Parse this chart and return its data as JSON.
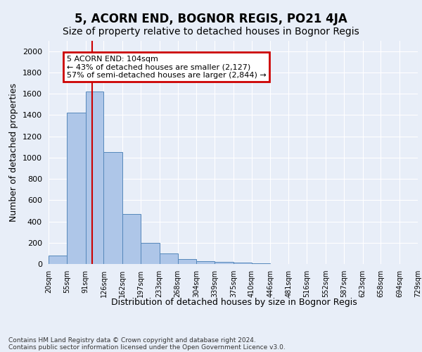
{
  "title": "5, ACORN END, BOGNOR REGIS, PO21 4JA",
  "subtitle": "Size of property relative to detached houses in Bognor Regis",
  "xlabel": "Distribution of detached houses by size in Bognor Regis",
  "ylabel": "Number of detached properties",
  "bin_edges": [
    20,
    55,
    91,
    126,
    162,
    197,
    233,
    268,
    304,
    339,
    375,
    410,
    446,
    481,
    516,
    552,
    587,
    623,
    658,
    694,
    729
  ],
  "bar_heights": [
    80,
    1420,
    1620,
    1050,
    470,
    200,
    100,
    45,
    25,
    20,
    10,
    5,
    2,
    1,
    0,
    0,
    0,
    0,
    0,
    0
  ],
  "bar_color": "#aec6e8",
  "bar_edgecolor": "#5588bb",
  "vline_x": 104,
  "vline_color": "#cc0000",
  "ylim": [
    0,
    2100
  ],
  "yticks": [
    0,
    200,
    400,
    600,
    800,
    1000,
    1200,
    1400,
    1600,
    1800,
    2000
  ],
  "annotation_line1": "5 ACORN END: 104sqm",
  "annotation_line2": "← 43% of detached houses are smaller (2,127)",
  "annotation_line3": "57% of semi-detached houses are larger (2,844) →",
  "annotation_box_color": "#cc0000",
  "footer_line1": "Contains HM Land Registry data © Crown copyright and database right 2024.",
  "footer_line2": "Contains public sector information licensed under the Open Government Licence v3.0.",
  "background_color": "#e8eef8",
  "plot_background": "#e8eef8",
  "grid_color": "#ffffff",
  "title_fontsize": 12,
  "subtitle_fontsize": 10,
  "ylabel_fontsize": 9,
  "tick_fontsize": 7,
  "footer_fontsize": 6.5,
  "tick_labels": [
    "20sqm",
    "55sqm",
    "91sqm",
    "126sqm",
    "162sqm",
    "197sqm",
    "233sqm",
    "268sqm",
    "304sqm",
    "339sqm",
    "375sqm",
    "410sqm",
    "446sqm",
    "481sqm",
    "516sqm",
    "552sqm",
    "587sqm",
    "623sqm",
    "658sqm",
    "694sqm",
    "729sqm"
  ]
}
